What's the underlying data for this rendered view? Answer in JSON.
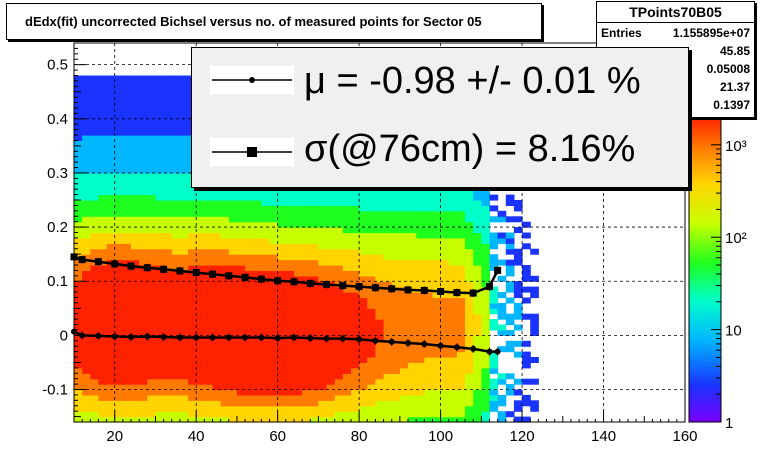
{
  "title": "dEdx(fit) uncorrected Bichsel versus no. of measured points for Sector 05",
  "stats": {
    "name": "TPoints70B05",
    "rows": [
      {
        "key": "Entries",
        "value": "1.155895e+07"
      },
      {
        "key": "",
        "value": "45.85"
      },
      {
        "key": "",
        "value": "0.05008"
      },
      {
        "key": "",
        "value": "21.37"
      },
      {
        "key": "",
        "value": "0.1397"
      }
    ]
  },
  "legend": {
    "mu_text": "μ  = -0.98 +/-  0.01 %",
    "sigma_text": "σ(@76cm) =  8.16%"
  },
  "chart_data": {
    "type": "heatmap",
    "x_axis": {
      "range": [
        10,
        160
      ],
      "ticks": [
        20,
        40,
        60,
        80,
        100,
        120,
        140,
        160
      ]
    },
    "y_axis": {
      "range": [
        -0.16,
        0.54
      ],
      "ticks": [
        -0.1,
        0,
        0.1,
        0.2,
        0.3,
        0.4,
        0.5
      ],
      "tick_labels": [
        "-0.1",
        "0",
        "0.1",
        "0.2",
        "0.3",
        "0.4",
        "0.5"
      ]
    },
    "z_axis": {
      "scale": "log",
      "range": [
        1,
        2000
      ],
      "ticks": [
        1,
        10,
        100,
        1000
      ],
      "tick_labels": [
        "1",
        "10",
        "10²",
        "10³"
      ]
    },
    "grid": true,
    "series": [
      {
        "name": "mu",
        "marker": "circle",
        "x": [
          10,
          12,
          16,
          20,
          24,
          28,
          32,
          36,
          40,
          44,
          48,
          52,
          56,
          60,
          64,
          68,
          72,
          76,
          80,
          84,
          88,
          92,
          96,
          100,
          104,
          108,
          112,
          114
        ],
        "y": [
          0.007,
          0.0,
          -0.001,
          -0.002,
          -0.003,
          -0.002,
          -0.003,
          -0.004,
          -0.004,
          -0.004,
          -0.004,
          -0.004,
          -0.004,
          -0.005,
          -0.004,
          -0.005,
          -0.006,
          -0.006,
          -0.007,
          -0.01,
          -0.012,
          -0.014,
          -0.016,
          -0.019,
          -0.022,
          -0.025,
          -0.03,
          -0.03
        ]
      },
      {
        "name": "sigma",
        "marker": "square",
        "x": [
          10,
          12,
          16,
          20,
          24,
          28,
          32,
          36,
          40,
          44,
          48,
          52,
          56,
          60,
          64,
          68,
          72,
          76,
          80,
          84,
          88,
          92,
          96,
          100,
          104,
          108,
          112,
          114
        ],
        "y": [
          0.145,
          0.14,
          0.136,
          0.132,
          0.128,
          0.125,
          0.122,
          0.119,
          0.116,
          0.113,
          0.11,
          0.107,
          0.104,
          0.101,
          0.099,
          0.096,
          0.094,
          0.092,
          0.09,
          0.088,
          0.086,
          0.084,
          0.083,
          0.081,
          0.079,
          0.078,
          0.09,
          0.12
        ]
      }
    ]
  }
}
